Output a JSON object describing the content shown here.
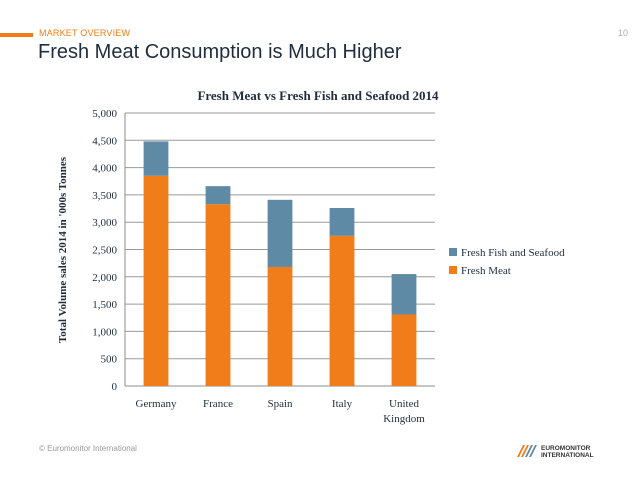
{
  "header": {
    "section": "MARKET OVERVIEW",
    "page_number": "10",
    "title": "Fresh Meat Consumption is Much Higher"
  },
  "footer": {
    "copyright": "© Euromonitor International",
    "logo_line1": "EUROMONITOR",
    "logo_line2": "INTERNATIONAL"
  },
  "colors": {
    "accent": "#f07d1a",
    "fresh_meat": "#f07d1a",
    "fresh_fish": "#5f8aa6"
  },
  "chart_data": {
    "type": "bar",
    "stacked": true,
    "title": "Fresh Meat vs Fresh Fish and Seafood 2014",
    "ylabel": "Total Volume sales 2014 in '000s Tonnes",
    "xlabel": "",
    "ylim": [
      0,
      5000
    ],
    "yticks": [
      "0",
      "500",
      "1,000",
      "1,500",
      "2,000",
      "2,500",
      "3,000",
      "3,500",
      "4,000",
      "4,500",
      "5,000"
    ],
    "ytick_values": [
      0,
      500,
      1000,
      1500,
      2000,
      2500,
      3000,
      3500,
      4000,
      4500,
      5000
    ],
    "grid": true,
    "legend_position": "right",
    "categories": [
      "Germany",
      "France",
      "Spain",
      "Italy",
      "United Kingdom"
    ],
    "category_lines": [
      [
        "Germany"
      ],
      [
        "France"
      ],
      [
        "Spain"
      ],
      [
        "Italy"
      ],
      [
        "United",
        "Kingdom"
      ]
    ],
    "series": [
      {
        "name": "Fresh Meat",
        "color": "#f07d1a",
        "values": [
          3850,
          3330,
          2180,
          2750,
          1310
        ]
      },
      {
        "name": "Fresh Fish and Seafood",
        "color": "#5f8aa6",
        "values": [
          630,
          330,
          1230,
          510,
          740
        ]
      }
    ],
    "legend_order": [
      "Fresh Fish and Seafood",
      "Fresh Meat"
    ]
  }
}
